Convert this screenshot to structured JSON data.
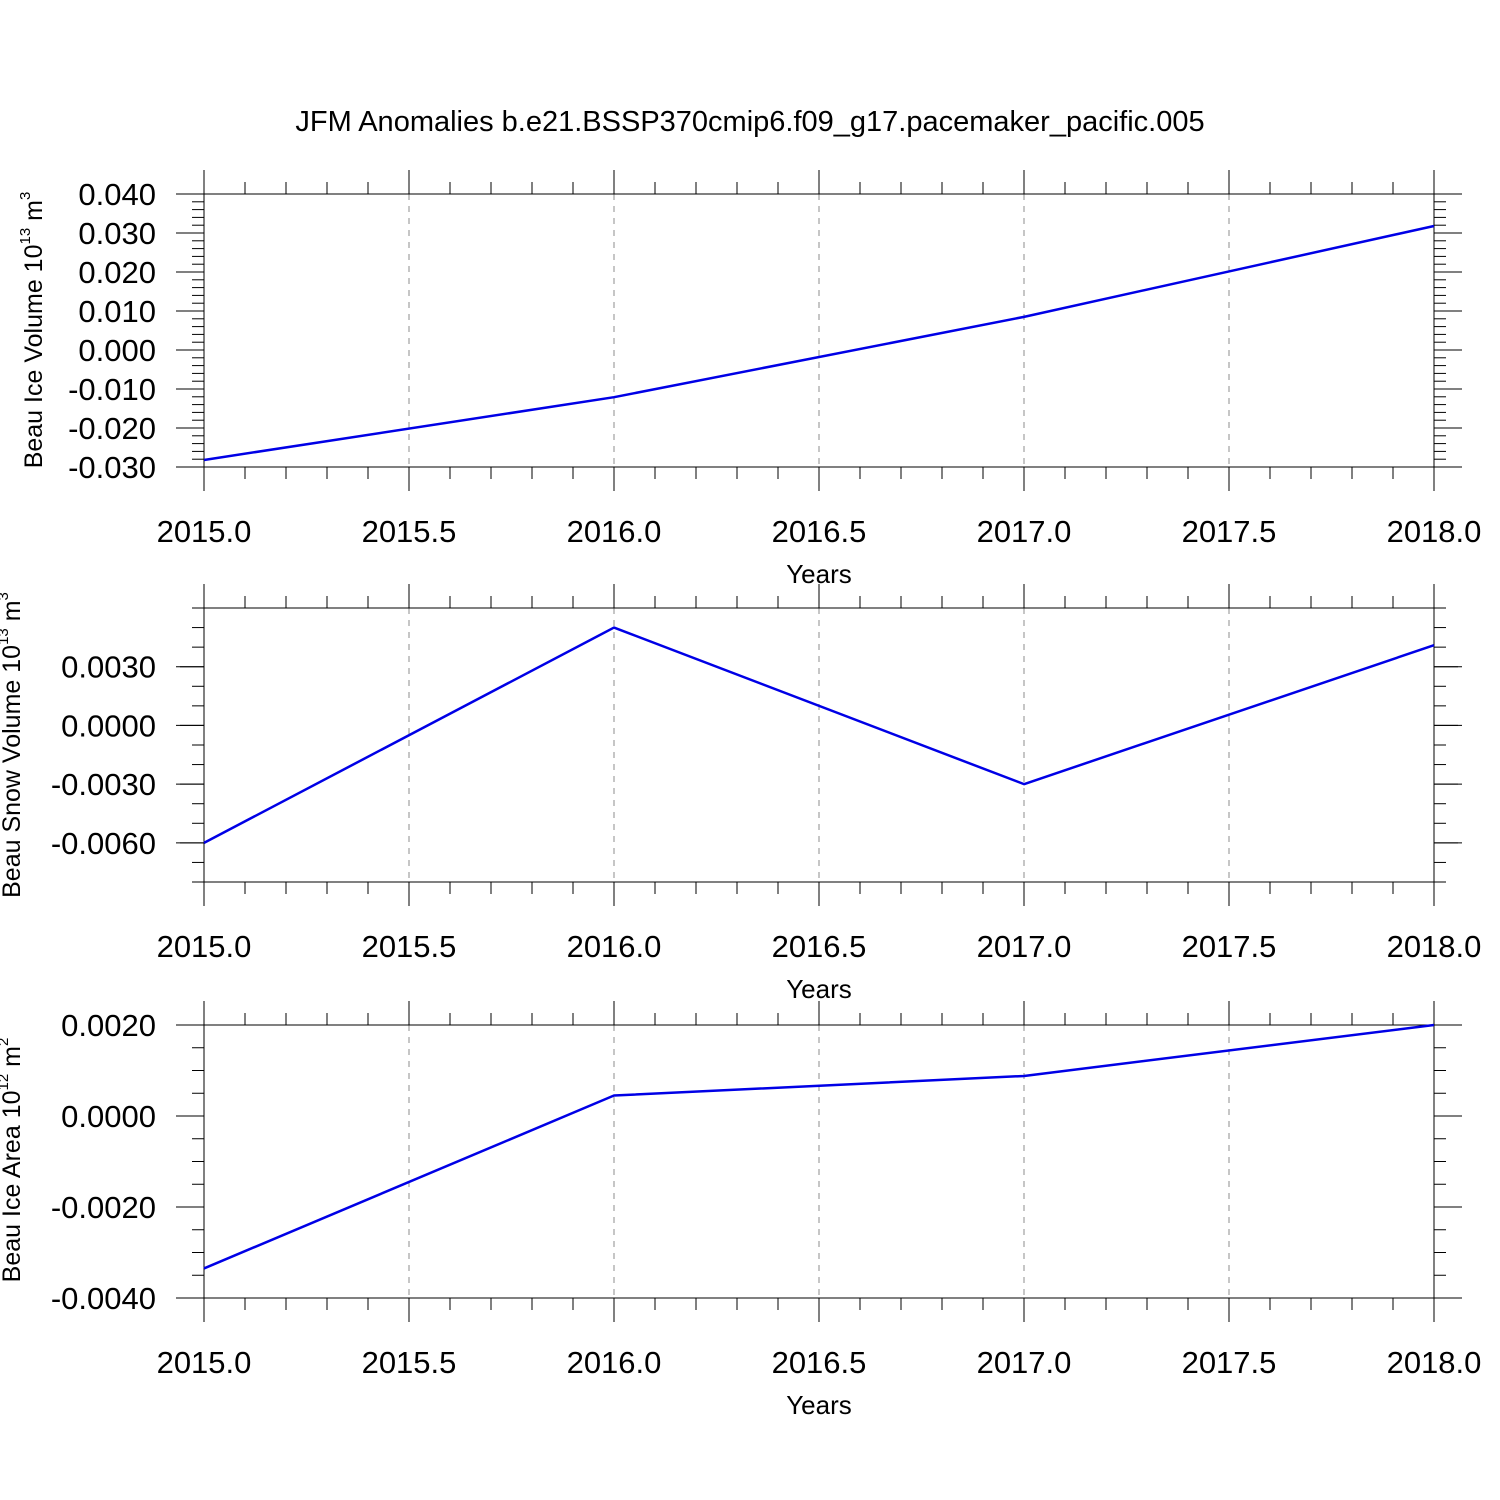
{
  "title": "JFM Anomalies b.e21.BSSP370cmip6.f09_g17.pacemaker_pacific.005",
  "chart_data": [
    {
      "type": "line",
      "ylabel": {
        "text": "Beau Ice Volume 10",
        "exponent": "13",
        "unit": "m",
        "unit_exponent": "3"
      },
      "xlabel": "Years",
      "xlim": [
        2015.0,
        2018.0
      ],
      "ylim": [
        -0.03,
        0.04
      ],
      "xticks": [
        2015.0,
        2015.5,
        2016.0,
        2016.5,
        2017.0,
        2017.5,
        2018.0
      ],
      "xtick_labels": [
        "2015.0",
        "2015.5",
        "2016.0",
        "2016.5",
        "2017.0",
        "2017.5",
        "2018.0"
      ],
      "yticks": [
        -0.03,
        -0.02,
        -0.01,
        0.0,
        0.01,
        0.02,
        0.03,
        0.04
      ],
      "ytick_labels": [
        "-0.030",
        "-0.020",
        "-0.010",
        "0.000",
        "0.010",
        "0.020",
        "0.030",
        "0.040"
      ],
      "grid": "vertical dashed",
      "series": [
        {
          "x": [
            2015,
            2016,
            2017,
            2018
          ],
          "y": [
            -0.0282,
            -0.0121,
            0.0085,
            0.0318
          ],
          "color": "#0000e6"
        }
      ]
    },
    {
      "type": "line",
      "ylabel": {
        "text": "Beau Snow Volume 10",
        "exponent": "13",
        "unit": "m",
        "unit_exponent": "3"
      },
      "xlabel": "Years",
      "xlim": [
        2015.0,
        2018.0
      ],
      "ylim": [
        -0.008,
        0.006
      ],
      "xticks": [
        2015.0,
        2015.5,
        2016.0,
        2016.5,
        2017.0,
        2017.5,
        2018.0
      ],
      "xtick_labels": [
        "2015.0",
        "2015.5",
        "2016.0",
        "2016.5",
        "2017.0",
        "2017.5",
        "2018.0"
      ],
      "yticks": [
        -0.006,
        -0.003,
        0.0,
        0.003
      ],
      "ytick_labels": [
        "-0.0060",
        "-0.0030",
        "0.0000",
        "0.0030"
      ],
      "grid": "vertical dashed",
      "series": [
        {
          "x": [
            2015,
            2016,
            2017,
            2018
          ],
          "y": [
            -0.006,
            0.005,
            -0.003,
            0.0041
          ],
          "color": "#0000e6"
        }
      ]
    },
    {
      "type": "line",
      "ylabel": {
        "text": "Beau Ice Area 10",
        "exponent": "12",
        "unit": "m",
        "unit_exponent": "2"
      },
      "xlabel": "Years",
      "xlim": [
        2015.0,
        2018.0
      ],
      "ylim": [
        -0.004,
        0.002
      ],
      "xticks": [
        2015.0,
        2015.5,
        2016.0,
        2016.5,
        2017.0,
        2017.5,
        2018.0
      ],
      "xtick_labels": [
        "2015.0",
        "2015.5",
        "2016.0",
        "2016.5",
        "2017.0",
        "2017.5",
        "2018.0"
      ],
      "yticks": [
        -0.004,
        -0.002,
        0.0,
        0.002
      ],
      "ytick_labels": [
        "-0.0040",
        "-0.0020",
        "0.0000",
        "0.0020"
      ],
      "grid": "vertical dashed",
      "series": [
        {
          "x": [
            2015,
            2016,
            2017,
            2018
          ],
          "y": [
            -0.00335,
            0.00045,
            0.00088,
            0.002
          ],
          "color": "#0000e6"
        }
      ]
    }
  ]
}
